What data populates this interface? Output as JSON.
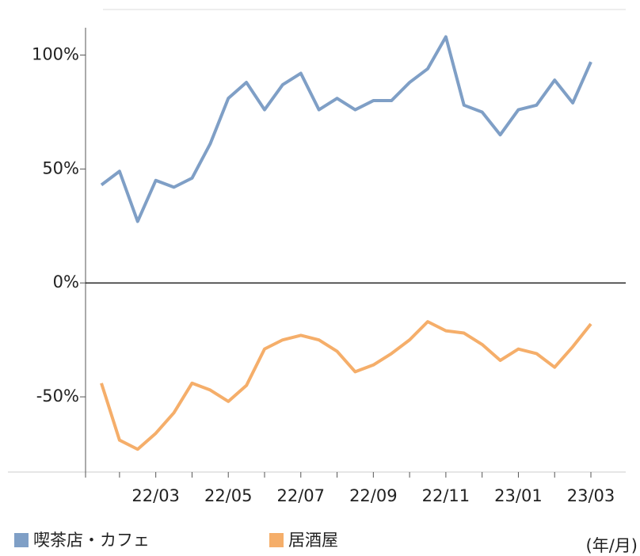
{
  "chart_data": {
    "type": "line",
    "categories": [
      null,
      null,
      null,
      "22/03",
      null,
      null,
      null,
      "22/05",
      null,
      null,
      null,
      "22/07",
      null,
      null,
      null,
      "22/09",
      null,
      null,
      null,
      "22/11",
      null,
      null,
      null,
      "23/01",
      null,
      null,
      null,
      "23/03"
    ],
    "series": [
      {
        "name": "喫茶店・カフェ",
        "color": "#7f9fc6",
        "values": [
          43,
          49,
          27,
          45,
          42,
          46,
          61,
          81,
          88,
          76,
          87,
          92,
          76,
          81,
          76,
          80,
          80,
          88,
          94,
          108,
          78,
          75,
          65,
          76,
          78,
          89,
          79,
          97
        ]
      },
      {
        "name": "居酒屋",
        "color": "#f5ae6a",
        "values": [
          -44,
          -69,
          -73,
          -66,
          -57,
          -44,
          -47,
          -52,
          -45,
          -29,
          -25,
          -23,
          -25,
          -30,
          -39,
          -36,
          -31,
          -25,
          -17,
          -21,
          -22,
          -27,
          -34,
          -29,
          -31,
          -37,
          -28,
          -18
        ]
      }
    ],
    "ylim": [
      -83,
      112
    ],
    "yticks": [
      {
        "value": 100,
        "label": "100%"
      },
      {
        "value": 50,
        "label": "50%"
      },
      {
        "value": 0,
        "label": "0%"
      },
      {
        "value": -50,
        "label": "-50%"
      }
    ],
    "x_unit": "(年/月)"
  }
}
